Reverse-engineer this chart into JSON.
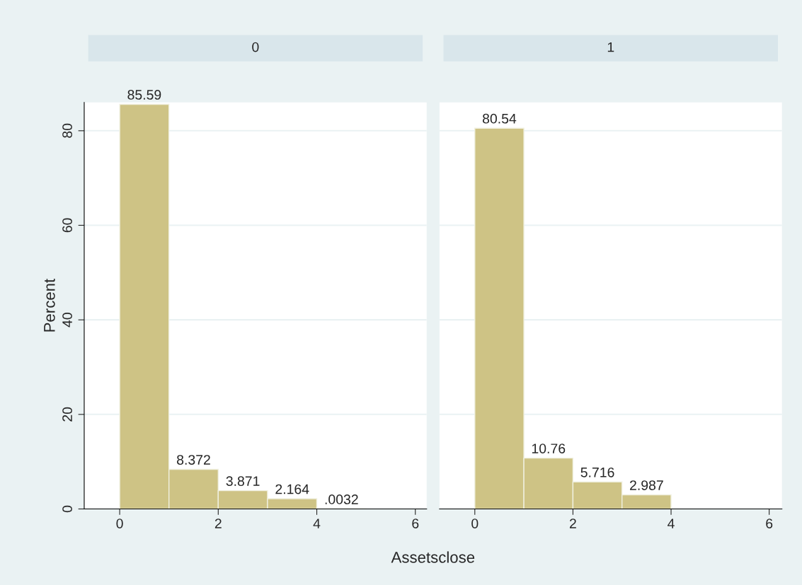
{
  "chart_data": [
    {
      "type": "histogram",
      "title": "0",
      "ylabel": "Percent",
      "xlabel": "Assetsclose",
      "bins": [
        0,
        1,
        2,
        3,
        4,
        5
      ],
      "values": [
        85.59,
        8.372,
        3.871,
        2.164,
        0.0032
      ],
      "value_labels": [
        "85.59",
        "8.372",
        "3.871",
        "2.164",
        ".0032"
      ],
      "color": "#cec385",
      "xlim": [
        -0.72,
        6.23
      ],
      "xticks": [
        0,
        2,
        4,
        6
      ],
      "ylim": [
        0,
        86
      ],
      "yticks": [
        0,
        20,
        40,
        60,
        80
      ],
      "grid": "y"
    },
    {
      "type": "histogram",
      "title": "1",
      "bins": [
        0,
        1,
        2,
        3,
        4
      ],
      "values": [
        80.54,
        10.76,
        5.716,
        2.987
      ],
      "value_labels": [
        "80.54",
        "10.76",
        "5.716",
        "2.987"
      ],
      "color": "#cec385",
      "xlim": [
        -0.72,
        6.26
      ],
      "xticks": [
        0,
        2,
        4,
        6
      ],
      "ylim": [
        0,
        86
      ],
      "yticks": [
        0,
        20,
        40,
        60,
        80
      ],
      "grid": "y",
      "tick_labels": "x"
    }
  ]
}
